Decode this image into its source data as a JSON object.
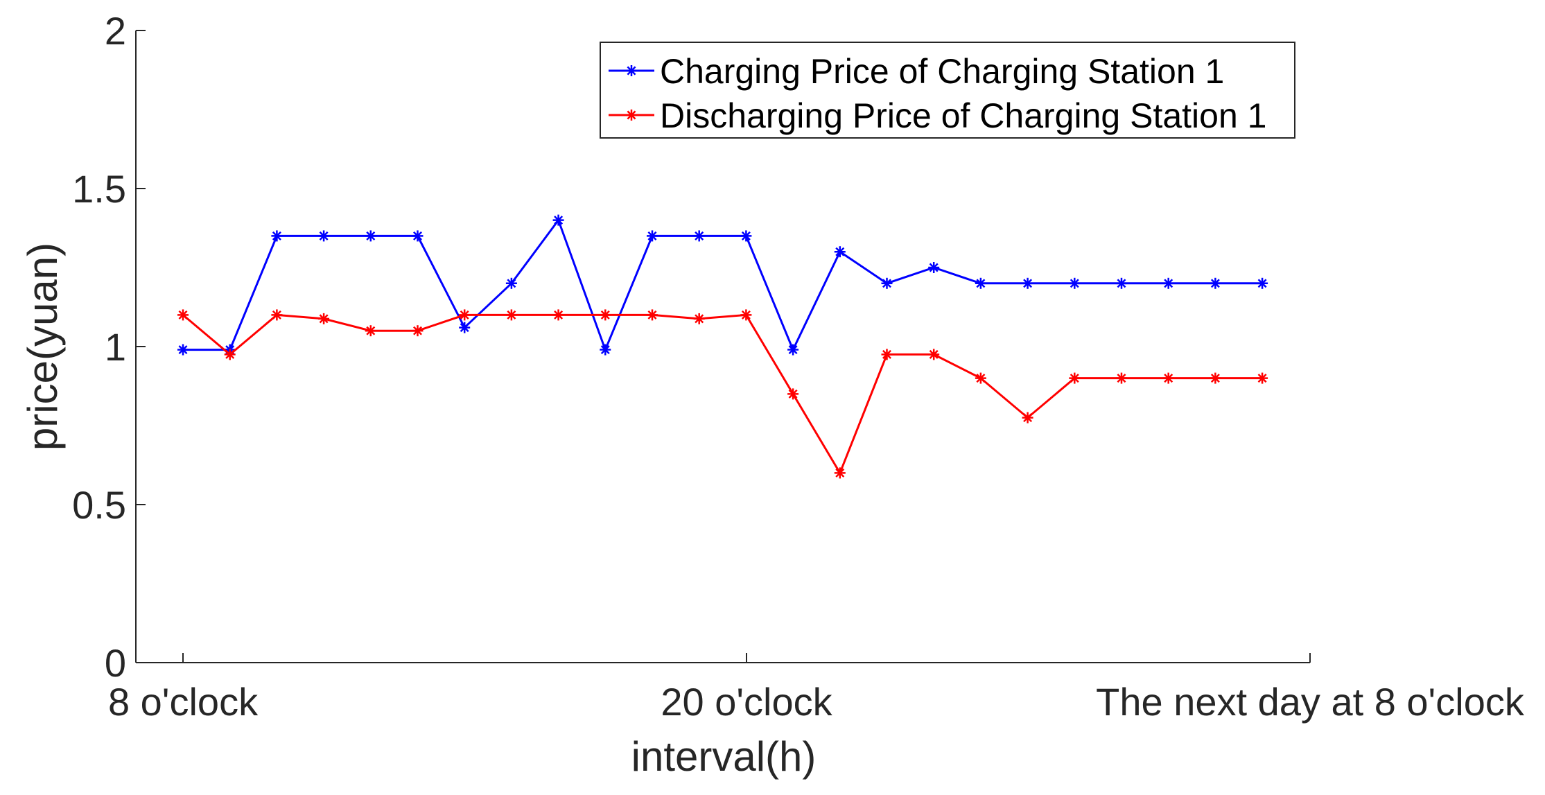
{
  "chart_data": {
    "type": "line",
    "xlabel": "interval(h)",
    "ylabel": "price(yuan)",
    "ylim": [
      0,
      2
    ],
    "y_ticks": [
      "0",
      "0.5",
      "1",
      "1.5",
      "2"
    ],
    "x_tick_labels": [
      "8 o'clock",
      "20 o'clock",
      "The next day at 8 o'clock"
    ],
    "x_range": [
      1,
      24
    ],
    "grid": false,
    "legend_position": "top-right",
    "x": [
      1,
      2,
      3,
      4,
      5,
      6,
      7,
      8,
      9,
      10,
      11,
      12,
      13,
      14,
      15,
      16,
      17,
      18,
      19,
      20,
      21,
      22,
      23,
      24
    ],
    "series": [
      {
        "name": "Charging Price of Charging Station 1",
        "color": "#0000ff",
        "marker": "asterisk",
        "values": [
          0.99,
          0.99,
          1.35,
          1.35,
          1.35,
          1.35,
          1.06,
          1.2,
          1.4,
          0.99,
          1.35,
          1.35,
          1.35,
          0.99,
          1.3,
          1.2,
          1.25,
          1.2,
          1.2,
          1.2,
          1.2,
          1.2,
          1.2,
          1.2
        ]
      },
      {
        "name": "Discharging Price of Charging Station 1",
        "color": "#ff0000",
        "marker": "asterisk",
        "values": [
          1.1,
          0.975,
          1.1,
          1.088,
          1.05,
          1.05,
          1.1,
          1.1,
          1.1,
          1.1,
          1.1,
          1.088,
          1.1,
          0.85,
          0.6,
          0.975,
          0.975,
          0.9,
          0.775,
          0.9,
          0.9,
          0.9,
          0.9,
          0.9
        ]
      }
    ]
  }
}
